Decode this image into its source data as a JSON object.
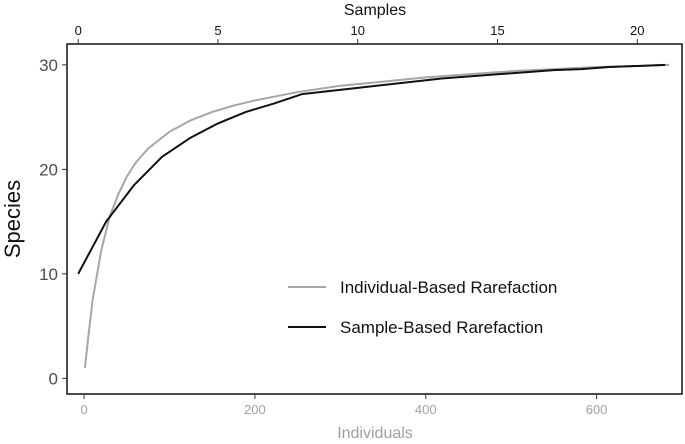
{
  "chart_data": {
    "type": "line",
    "title": "",
    "ylabel": "Species",
    "xlabel_bottom": "Individuals",
    "xlabel_top": "Samples",
    "bottom_axis": {
      "range": [
        -20,
        700
      ],
      "ticks": [
        0,
        200,
        400,
        600
      ]
    },
    "top_axis": {
      "range": [
        -0.4,
        21.6
      ],
      "ticks": [
        0,
        5,
        10,
        15,
        20
      ]
    },
    "y_axis": {
      "range": [
        -1.5,
        32
      ],
      "ticks": [
        0,
        10,
        20,
        30
      ]
    },
    "grid": false,
    "legend_position": "bottom-right",
    "series": [
      {
        "name": "Individual-Based Rarefaction",
        "axis": "bottom",
        "color": "#a6a6a6",
        "points": [
          [
            1,
            1
          ],
          [
            5,
            4
          ],
          [
            10,
            7.5
          ],
          [
            20,
            12.2
          ],
          [
            30,
            15.5
          ],
          [
            40,
            17.6
          ],
          [
            50,
            19.3
          ],
          [
            60,
            20.6
          ],
          [
            75,
            22
          ],
          [
            100,
            23.6
          ],
          [
            125,
            24.7
          ],
          [
            150,
            25.5
          ],
          [
            175,
            26.1
          ],
          [
            200,
            26.6
          ],
          [
            250,
            27.4
          ],
          [
            300,
            28
          ],
          [
            350,
            28.4
          ],
          [
            400,
            28.8
          ],
          [
            450,
            29.1
          ],
          [
            500,
            29.4
          ],
          [
            550,
            29.6
          ],
          [
            600,
            29.8
          ],
          [
            650,
            29.9
          ],
          [
            685,
            30
          ]
        ]
      },
      {
        "name": "Sample-Based Rarefaction",
        "axis": "top",
        "color": "#111111",
        "points": [
          [
            0,
            10
          ],
          [
            1,
            15
          ],
          [
            2,
            18.5
          ],
          [
            3,
            21.2
          ],
          [
            4,
            23
          ],
          [
            5,
            24.4
          ],
          [
            6,
            25.5
          ],
          [
            7,
            26.3
          ],
          [
            8,
            27.2
          ],
          [
            9,
            27.5
          ],
          [
            10,
            27.8
          ],
          [
            11,
            28.1
          ],
          [
            12,
            28.4
          ],
          [
            13,
            28.7
          ],
          [
            14,
            28.9
          ],
          [
            15,
            29.1
          ],
          [
            16,
            29.3
          ],
          [
            17,
            29.5
          ],
          [
            18,
            29.6
          ],
          [
            19,
            29.8
          ],
          [
            20,
            29.9
          ],
          [
            21,
            30
          ]
        ]
      }
    ]
  }
}
